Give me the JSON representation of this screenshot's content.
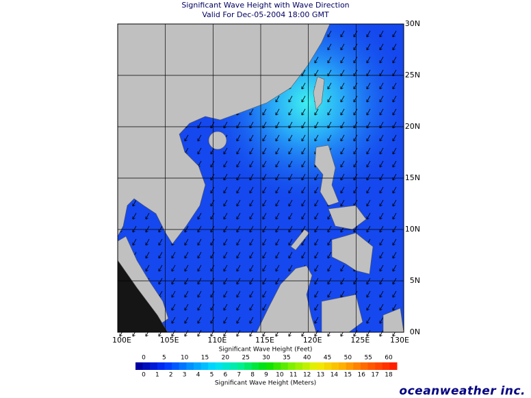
{
  "header": {
    "title": "Significant Wave Height with Wave Direction",
    "subtitle": "Valid For Dec-05-2004 18:00 GMT"
  },
  "map": {
    "lon_labels": [
      "100E",
      "105E",
      "110E",
      "115E",
      "120E",
      "125E",
      "130E"
    ],
    "lat_labels": [
      "30N",
      "25N",
      "20N",
      "15N",
      "10N",
      "5N",
      "0N"
    ]
  },
  "colorbar": {
    "feet_title": "Significant Wave Height (Feet)",
    "feet_labels": [
      0,
      5,
      10,
      15,
      20,
      25,
      30,
      35,
      40,
      45,
      50,
      55,
      60
    ],
    "meters_title": "Significant Wave Height (Meters)",
    "meters_labels": [
      0,
      1,
      2,
      3,
      4,
      5,
      6,
      7,
      8,
      9,
      10,
      11,
      12,
      13,
      14,
      15,
      16,
      17,
      18
    ]
  },
  "footer": {
    "brand": "oceanweather inc."
  }
}
